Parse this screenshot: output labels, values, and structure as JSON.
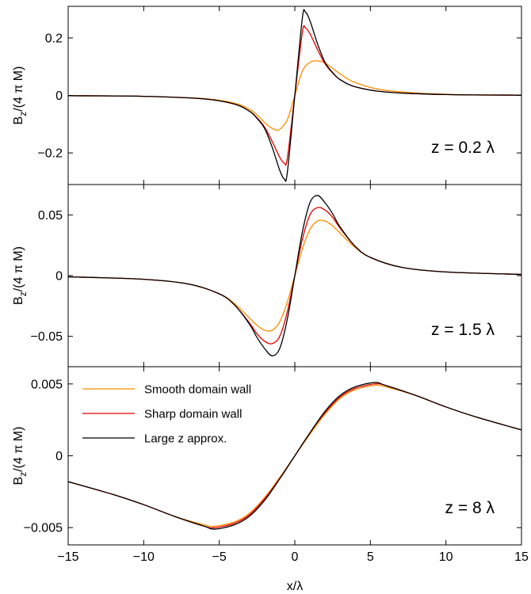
{
  "chart_data": [
    {
      "type": "line",
      "annotation": "z = 0.2 λ",
      "ylabel": "B_z/(4 π M)",
      "ylim": [
        -0.31,
        0.31
      ],
      "yticks": [
        -0.2,
        0,
        0.2
      ],
      "ytick_labels": [
        "−0.2",
        "0",
        "0.2"
      ],
      "xlim": [
        -15,
        15
      ],
      "series": [
        {
          "color": "#FF8C00",
          "x": [
            -15,
            -10,
            -6,
            -4,
            -3,
            -2.5,
            -2,
            -1.5,
            -1.2,
            -1,
            -0.5,
            0,
            0.5,
            1,
            1.5,
            2,
            3,
            4,
            6,
            10,
            15
          ],
          "y": [
            -0.001,
            -0.003,
            -0.011,
            -0.027,
            -0.048,
            -0.068,
            -0.094,
            -0.115,
            -0.12,
            -0.118,
            -0.085,
            0,
            0.085,
            0.115,
            0.12,
            0.113,
            0.075,
            0.045,
            0.018,
            0.004,
            0.001
          ]
        },
        {
          "color": "#E00000",
          "x": [
            -15,
            -10,
            -6,
            -4,
            -3,
            -2.5,
            -2,
            -1.5,
            -1,
            -0.7,
            -0.5,
            0,
            0.5,
            0.7,
            1,
            1.5,
            2,
            2.5,
            3,
            4,
            6,
            10,
            15
          ],
          "y": [
            -0.001,
            -0.003,
            -0.012,
            -0.03,
            -0.055,
            -0.078,
            -0.11,
            -0.16,
            -0.215,
            -0.235,
            -0.22,
            0,
            0.22,
            0.235,
            0.215,
            0.16,
            0.11,
            0.078,
            0.055,
            0.03,
            0.012,
            0.003,
            0.001
          ]
        },
        {
          "color": "#000000",
          "x": [
            -15,
            -10,
            -6,
            -4,
            -3,
            -2.5,
            -2,
            -1.5,
            -1,
            -0.7,
            -0.5,
            0,
            0.5,
            0.7,
            1,
            1.5,
            2,
            2.5,
            3,
            4,
            6,
            10,
            15
          ],
          "y": [
            -0.001,
            -0.003,
            -0.012,
            -0.03,
            -0.055,
            -0.08,
            -0.115,
            -0.18,
            -0.26,
            -0.29,
            -0.27,
            0,
            0.27,
            0.29,
            0.26,
            0.18,
            0.115,
            0.08,
            0.055,
            0.03,
            0.012,
            0.003,
            0.001
          ]
        }
      ]
    },
    {
      "type": "line",
      "annotation": "z = 1.5 λ",
      "ylabel": "B_z/(4 π M)",
      "ylim": [
        -0.075,
        0.075
      ],
      "yticks": [
        -0.05,
        0,
        0.05
      ],
      "ytick_labels": [
        "−0.05",
        "0",
        "0.05"
      ],
      "xlim": [
        -15,
        15
      ],
      "series": [
        {
          "color": "#FF8C00",
          "x": [
            -15,
            -10,
            -7,
            -5,
            -4,
            -3,
            -2.5,
            -2,
            -1.5,
            -1,
            -0.5,
            0,
            0.5,
            1,
            1.5,
            2,
            2.5,
            3,
            4,
            5,
            7,
            10,
            15
          ],
          "y": [
            -0.001,
            -0.003,
            -0.007,
            -0.015,
            -0.023,
            -0.035,
            -0.041,
            -0.045,
            -0.045,
            -0.038,
            -0.022,
            0,
            0.022,
            0.038,
            0.045,
            0.045,
            0.041,
            0.035,
            0.023,
            0.015,
            0.007,
            0.003,
            0.001
          ]
        },
        {
          "color": "#E00000",
          "x": [
            -15,
            -10,
            -7,
            -5,
            -4,
            -3,
            -2.5,
            -2,
            -1.5,
            -1,
            -0.5,
            0,
            0.5,
            1,
            1.5,
            2,
            2.5,
            3,
            4,
            5,
            7,
            10,
            15
          ],
          "y": [
            -0.001,
            -0.003,
            -0.007,
            -0.015,
            -0.024,
            -0.039,
            -0.048,
            -0.054,
            -0.056,
            -0.05,
            -0.03,
            0,
            0.03,
            0.05,
            0.056,
            0.054,
            0.048,
            0.039,
            0.024,
            0.015,
            0.007,
            0.003,
            0.001
          ]
        },
        {
          "color": "#000000",
          "x": [
            -15,
            -10,
            -7,
            -5,
            -4,
            -3,
            -2.5,
            -2,
            -1.5,
            -1,
            -0.5,
            0,
            0.5,
            1,
            1.5,
            2,
            2.5,
            3,
            4,
            5,
            7,
            10,
            15
          ],
          "y": [
            -0.001,
            -0.003,
            -0.007,
            -0.015,
            -0.024,
            -0.04,
            -0.051,
            -0.06,
            -0.066,
            -0.06,
            -0.036,
            0,
            0.036,
            0.06,
            0.066,
            0.06,
            0.051,
            0.04,
            0.024,
            0.015,
            0.007,
            0.003,
            0.001
          ]
        }
      ]
    },
    {
      "type": "line",
      "annotation": "z = 8 λ",
      "ylabel": "B_z/(4 π M)",
      "ylim": [
        -0.0062,
        0.0062
      ],
      "yticks": [
        -0.005,
        0,
        0.005
      ],
      "ytick_labels": [
        "−0.005",
        "0",
        "0.005"
      ],
      "xlim": [
        -15,
        15
      ],
      "xticks": [
        -15,
        -10,
        -5,
        0,
        5,
        10,
        15
      ],
      "xtick_labels": [
        "−15",
        "−10",
        "−5",
        "0",
        "5",
        "10",
        "15"
      ],
      "xlabel": "x/λ",
      "legend": {
        "position": "top-left",
        "entries": [
          "Smooth domain wall",
          "Sharp domain wall",
          "Large z approx."
        ]
      },
      "series": [
        {
          "name": "Smooth domain wall",
          "color": "#FF8C00",
          "x": [
            -15,
            -12,
            -10,
            -8,
            -6,
            -5.3,
            -4,
            -3,
            -2,
            -1,
            0,
            1,
            2,
            3,
            4,
            5.3,
            6,
            8,
            10,
            12,
            15
          ],
          "y": [
            -0.0018,
            -0.0027,
            -0.0034,
            -0.0042,
            -0.0048,
            -0.0049,
            -0.0046,
            -0.004,
            -0.0029,
            -0.0015,
            0,
            0.0015,
            0.0029,
            0.004,
            0.0046,
            0.0049,
            0.0048,
            0.0042,
            0.0034,
            0.0027,
            0.0018
          ]
        },
        {
          "name": "Sharp domain wall",
          "color": "#E00000",
          "x": [
            -15,
            -12,
            -10,
            -8,
            -6,
            -5.3,
            -4,
            -3,
            -2,
            -1,
            0,
            1,
            2,
            3,
            4,
            5.3,
            6,
            8,
            10,
            12,
            15
          ],
          "y": [
            -0.0018,
            -0.0027,
            -0.0034,
            -0.0042,
            -0.0049,
            -0.005,
            -0.0047,
            -0.0041,
            -0.003,
            -0.0016,
            0,
            0.0016,
            0.003,
            0.0041,
            0.0047,
            0.005,
            0.0049,
            0.0042,
            0.0034,
            0.0027,
            0.0018
          ]
        },
        {
          "name": "Large z approx.",
          "color": "#000000",
          "x": [
            -15,
            -12,
            -10,
            -8,
            -6,
            -5.3,
            -4,
            -3,
            -2,
            -1,
            0,
            1,
            2,
            3,
            4,
            5.3,
            6,
            8,
            10,
            12,
            15
          ],
          "y": [
            -0.0018,
            -0.0027,
            -0.0034,
            -0.0042,
            -0.0049,
            -0.0051,
            -0.0048,
            -0.0042,
            -0.0031,
            -0.0016,
            0,
            0.0016,
            0.0031,
            0.0042,
            0.0048,
            0.0051,
            0.0049,
            0.0042,
            0.0034,
            0.0027,
            0.0018
          ]
        }
      ]
    }
  ]
}
